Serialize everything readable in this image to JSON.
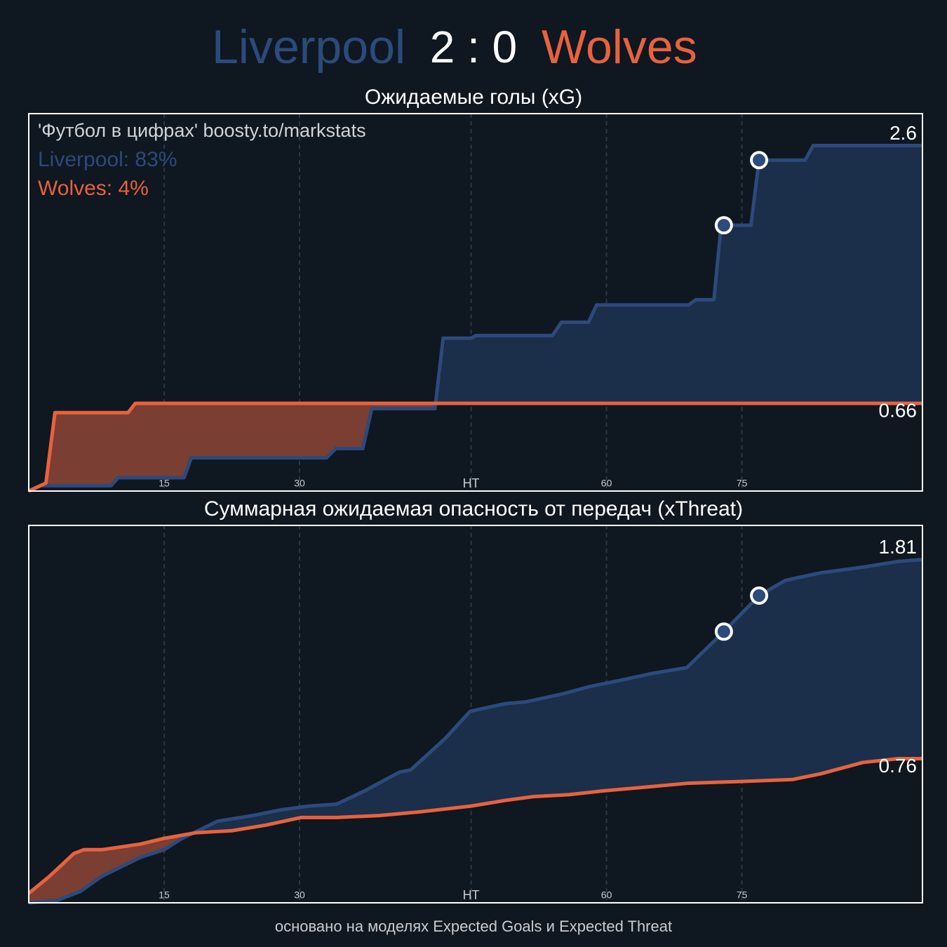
{
  "header": {
    "home": "Liverpool",
    "score": "2 : 0",
    "away": "Wolves"
  },
  "chart_data": [
    {
      "type": "line",
      "title": "Ожидаемые голы (xG)",
      "annotations": [
        "'Футбол в цифрах' boosty.to/markstats",
        "Liverpool: 83%",
        "Wolves: 4%"
      ],
      "xlim": [
        0,
        99
      ],
      "ylim": [
        0,
        2.84
      ],
      "xticks": [
        15,
        30,
        {
          "value": 49,
          "label": "HT"
        },
        {
          "value": 64,
          "label": "60"
        },
        {
          "value": 79,
          "label": "75"
        }
      ],
      "grid": true,
      "series": [
        {
          "color": "#2c4a7c",
          "fill": "#1b2e4a",
          "x": [
            0,
            1.3,
            9.1,
            9.9,
            17.2,
            18,
            33,
            34,
            37,
            38,
            45,
            45.9,
            49,
            49.5,
            58,
            59,
            62,
            62.9,
            73.1,
            73.9,
            75.9,
            76.7,
            80,
            80.9,
            86,
            86.9,
            99
          ],
          "values": [
            0,
            0.04,
            0.04,
            0.1,
            0.1,
            0.25,
            0.25,
            0.32,
            0.32,
            0.62,
            0.62,
            1.15,
            1.15,
            1.17,
            1.17,
            1.27,
            1.27,
            1.4,
            1.4,
            1.44,
            1.44,
            2.0,
            2.0,
            2.49,
            2.49,
            2.6,
            2.6
          ],
          "goals_x": [
            77,
            80.9
          ],
          "goals_values": [
            2.0,
            2.49
          ]
        },
        {
          "color": "#e8623e",
          "fill": "#7a3e33",
          "x": [
            0,
            1.9,
            2.9,
            11,
            11.8,
            99
          ],
          "values": [
            0,
            0.06,
            0.59,
            0.59,
            0.66,
            0.66
          ]
        }
      ]
    },
    {
      "type": "line",
      "title": "Суммарная ожидаемая опасность от передач (xThreat)",
      "xlim": [
        0,
        99
      ],
      "ylim": [
        0,
        1.99
      ],
      "xticks": [
        15,
        30,
        {
          "value": 49,
          "label": "HT"
        },
        {
          "value": 64,
          "label": "60"
        },
        {
          "value": 79,
          "label": "75"
        }
      ],
      "grid": true,
      "series": [
        {
          "color": "#2c4a7c",
          "fill": "#1b2e4a",
          "x": [
            0,
            3.0,
            5.7,
            8.1,
            12.4,
            15,
            17,
            20.9,
            24.8,
            27.9,
            31,
            34.1,
            37.2,
            41.1,
            42.3,
            46.2,
            48.9,
            52.8,
            55.1,
            59,
            62.1,
            65.2,
            69.1,
            72.9,
            77,
            80.9,
            83.8,
            87.7,
            92.4,
            96.3,
            99
          ],
          "values": [
            0,
            0.01,
            0.06,
            0.14,
            0.24,
            0.28,
            0.34,
            0.43,
            0.46,
            0.49,
            0.51,
            0.52,
            0.59,
            0.69,
            0.7,
            0.87,
            1.01,
            1.05,
            1.06,
            1.1,
            1.14,
            1.17,
            1.21,
            1.24,
            1.43,
            1.62,
            1.7,
            1.74,
            1.77,
            1.8,
            1.81
          ],
          "goals_x": [
            77,
            80.9
          ],
          "goals_values": [
            1.43,
            1.62
          ]
        },
        {
          "color": "#e8623e",
          "fill": "#7a3e33",
          "x": [
            0,
            2.3,
            5,
            6.1,
            8.1,
            12.4,
            15,
            18.6,
            22.5,
            26.3,
            30.2,
            34.1,
            38.8,
            43.4,
            49,
            52.8,
            55.9,
            59.8,
            63.6,
            68.3,
            72.9,
            79,
            84.6,
            87.7,
            92.4,
            96.3,
            99
          ],
          "values": [
            0.05,
            0.14,
            0.26,
            0.28,
            0.28,
            0.31,
            0.34,
            0.37,
            0.38,
            0.41,
            0.45,
            0.45,
            0.46,
            0.48,
            0.51,
            0.54,
            0.56,
            0.57,
            0.59,
            0.61,
            0.63,
            0.64,
            0.65,
            0.68,
            0.74,
            0.76,
            0.76
          ]
        }
      ]
    }
  ],
  "footer": "основано на моделях Expected Goals и Expected Threat"
}
